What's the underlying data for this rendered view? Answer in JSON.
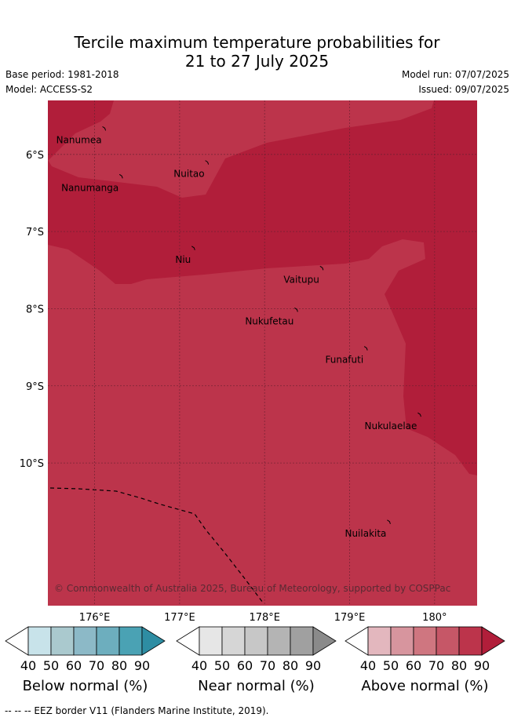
{
  "title_line1": "Tercile maximum temperature probabilities for",
  "title_line2": "21 to 27 July 2025",
  "base_period": "Base period: 1981-2018",
  "model": "Model: ACCESS-S2",
  "model_run": "Model run: 07/07/2025",
  "issued": "Issued: 09/07/2025",
  "copyright": "© Commonwealth of Australia 2025, Bureau of Meteorology, supported by COSPPac",
  "footer": "-- -- -- EEZ border V11 (Flanders Marine Institute, 2019).",
  "map": {
    "lon_min": 175.45,
    "lon_max": 180.5,
    "lat_min": -11.85,
    "lat_max": -5.3,
    "lon_ticks": [
      {
        "value": 176,
        "label": "176°E"
      },
      {
        "value": 177,
        "label": "177°E"
      },
      {
        "value": 178,
        "label": "178°E"
      },
      {
        "value": 179,
        "label": "179°E"
      },
      {
        "value": 180,
        "label": "180°"
      }
    ],
    "lat_ticks": [
      {
        "value": -6,
        "label": "6°S"
      },
      {
        "value": -7,
        "label": "7°S"
      },
      {
        "value": -8,
        "label": "8°S"
      },
      {
        "value": -9,
        "label": "9°S"
      },
      {
        "value": -10,
        "label": "10°S"
      }
    ],
    "islands": [
      {
        "name": "Nanumea",
        "lon": 176.12,
        "lat": -5.67
      },
      {
        "name": "Nuitao",
        "lon": 177.33,
        "lat": -6.11
      },
      {
        "name": "Nanumanga",
        "lon": 176.32,
        "lat": -6.29
      },
      {
        "name": "Niu",
        "lon": 177.17,
        "lat": -7.22
      },
      {
        "name": "Vaitupu",
        "lon": 178.68,
        "lat": -7.48
      },
      {
        "name": "Nukufetau",
        "lon": 178.38,
        "lat": -8.02
      },
      {
        "name": "Funafuti",
        "lon": 179.2,
        "lat": -8.52
      },
      {
        "name": "Nukulaelae",
        "lon": 179.83,
        "lat": -9.38
      },
      {
        "name": "Nuilakita",
        "lon": 179.47,
        "lat": -10.77
      }
    ],
    "fill_colors": {
      "above_80": "#bc344b",
      "above_90": "#b11e3a"
    }
  },
  "colorbars": [
    {
      "label": "Below normal (%)",
      "colors": [
        "#c8e3ea",
        "#aac9ce",
        "#8cb9c7",
        "#6daebe",
        "#4aa2b4",
        "#2e8da3"
      ]
    },
    {
      "label": "Near normal (%)",
      "colors": [
        "#e6e6e6",
        "#d6d6d6",
        "#c7c7c7",
        "#b4b4b4",
        "#a0a0a0",
        "#8a8a8a"
      ]
    },
    {
      "label": "Above normal (%)",
      "colors": [
        "#e3b7be",
        "#d7959e",
        "#cf7680",
        "#c65767",
        "#bc344b",
        "#b11e3a"
      ]
    }
  ],
  "colorbar_ticks": [
    "40",
    "50",
    "60",
    "70",
    "80",
    "90"
  ]
}
